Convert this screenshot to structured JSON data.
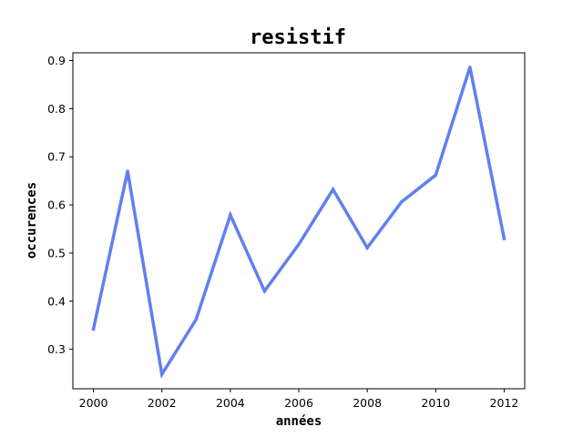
{
  "chart_data": {
    "type": "line",
    "title": "resistif",
    "xlabel": "années",
    "ylabel": "occurences",
    "x": [
      2000,
      2001,
      2002,
      2003,
      2004,
      2005,
      2006,
      2007,
      2008,
      2009,
      2010,
      2011,
      2012
    ],
    "series": [
      {
        "values": [
          0.342,
          0.67,
          0.248,
          0.362,
          0.579,
          0.421,
          0.518,
          0.632,
          0.511,
          0.606,
          0.662,
          0.886,
          0.53
        ],
        "color": "#6080f0"
      }
    ],
    "xlim": [
      1999.4,
      2012.6
    ],
    "ylim": [
      0.218,
      0.916
    ],
    "xticks": [
      "2000",
      "2002",
      "2004",
      "2006",
      "2008",
      "2010",
      "2012"
    ],
    "yticks": [
      "0.3",
      "0.4",
      "0.5",
      "0.6",
      "0.7",
      "0.8",
      "0.9"
    ],
    "grid": false,
    "legend": "none"
  }
}
